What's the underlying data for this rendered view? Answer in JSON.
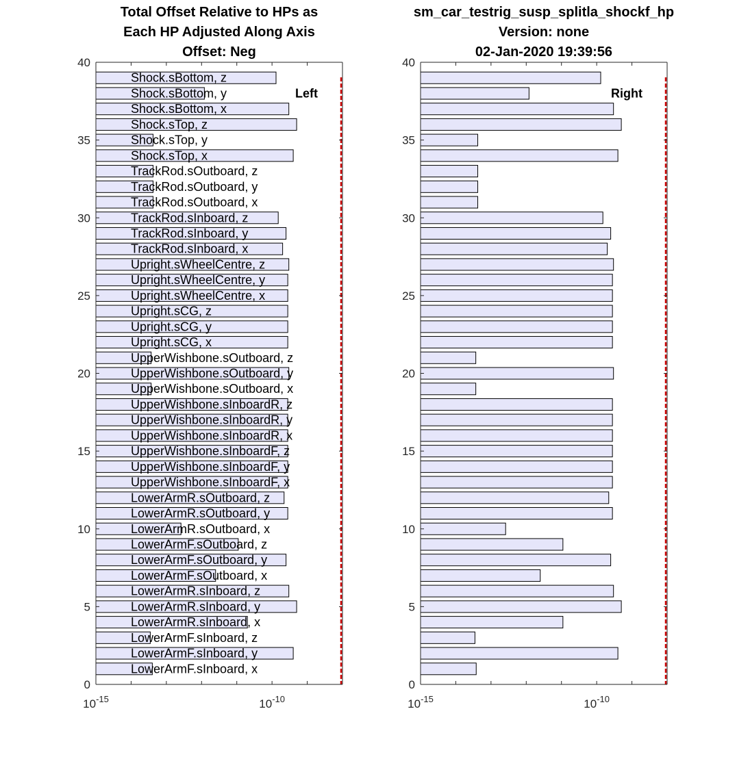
{
  "chart_data": [
    {
      "type": "bar",
      "orientation": "horizontal",
      "xscale": "log",
      "title_lines": [
        "Total Offset Relative to HPs as",
        "Each HP Adjusted Along Axis",
        "Offset: Neg"
      ],
      "side_label": "Left",
      "ylim": [
        0,
        40
      ],
      "xlim": [
        1e-15,
        1e-08
      ],
      "y_ticks": [
        "0",
        "5",
        "10",
        "15",
        "20",
        "25",
        "30",
        "35",
        "40"
      ],
      "x_tick_labels": [
        {
          "base": "10",
          "exp": "-15"
        },
        {
          "base": "10",
          "exp": "-10"
        }
      ],
      "categories": [
        "LowerArmF.sInboard, x",
        "LowerArmF.sInboard, y",
        "LowerArmF.sInboard, z",
        "LowerArmR.sInboard, x",
        "LowerArmR.sInboard, y",
        "LowerArmR.sInboard, z",
        "LowerArmF.sOutboard, x",
        "LowerArmF.sOutboard, y",
        "LowerArmF.sOutboard, z",
        "LowerArmR.sOutboard, x",
        "LowerArmR.sOutboard, y",
        "LowerArmR.sOutboard, z",
        "UpperWishbone.sInboardF, x",
        "UpperWishbone.sInboardF, y",
        "UpperWishbone.sInboardF, z",
        "UpperWishbone.sInboardR, x",
        "UpperWishbone.sInboardR, y",
        "UpperWishbone.sInboardR, z",
        "UpperWishbone.sOutboard, x",
        "UpperWishbone.sOutboard, y",
        "UpperWishbone.sOutboard, z",
        "Upright.sCG, x",
        "Upright.sCG, y",
        "Upright.sCG, z",
        "Upright.sWheelCentre, x",
        "Upright.sWheelCentre, y",
        "Upright.sWheelCentre, z",
        "TrackRod.sInboard, x",
        "TrackRod.sInboard, y",
        "TrackRod.sInboard, z",
        "TrackRod.sOutboard, x",
        "TrackRod.sOutboard, y",
        "TrackRod.sOutboard, z",
        "Shock.sTop, x",
        "Shock.sTop, y",
        "Shock.sTop, z",
        "Shock.sBottom, x",
        "Shock.sBottom, y",
        "Shock.sBottom, z"
      ],
      "values": [
        4e-14,
        4e-10,
        3.5e-14,
        2e-11,
        5e-10,
        3e-10,
        2.5e-12,
        2.5e-10,
        1.1e-11,
        2.6e-13,
        2.8e-10,
        2.2e-10,
        2.8e-10,
        2.8e-10,
        2.8e-10,
        2.8e-10,
        2.8e-10,
        2.8e-10,
        3.7e-14,
        3e-10,
        3.7e-14,
        2.8e-10,
        2.8e-10,
        2.8e-10,
        2.8e-10,
        2.8e-10,
        3e-10,
        2e-10,
        2.5e-10,
        1.5e-10,
        4.2e-14,
        4.2e-14,
        4.2e-14,
        4e-10,
        4.2e-14,
        5e-10,
        3e-10,
        1.2e-12,
        1.3e-10
      ]
    },
    {
      "type": "bar",
      "orientation": "horizontal",
      "xscale": "log",
      "title_lines": [
        "sm_car_testrig_susp_splitla_shockf_hp",
        "Version: none",
        "02-Jan-2020 19:39:56"
      ],
      "side_label": "Right",
      "ylim": [
        0,
        40
      ],
      "xlim": [
        1e-15,
        1e-08
      ],
      "y_ticks": [
        "0",
        "5",
        "10",
        "15",
        "20",
        "25",
        "30",
        "35",
        "40"
      ],
      "x_tick_labels": [
        {
          "base": "10",
          "exp": "-15"
        },
        {
          "base": "10",
          "exp": "-10"
        }
      ],
      "values": [
        3.8e-14,
        4e-10,
        3.5e-14,
        1.1e-11,
        5e-10,
        3e-10,
        2.5e-12,
        2.5e-10,
        1.1e-11,
        2.6e-13,
        2.8e-10,
        2.2e-10,
        2.8e-10,
        2.8e-10,
        2.8e-10,
        2.8e-10,
        2.8e-10,
        2.8e-10,
        3.7e-14,
        3e-10,
        3.7e-14,
        2.8e-10,
        2.8e-10,
        2.8e-10,
        2.8e-10,
        2.8e-10,
        3e-10,
        2e-10,
        2.5e-10,
        1.5e-10,
        4.2e-14,
        4.2e-14,
        4.2e-14,
        4e-10,
        4.2e-14,
        5e-10,
        3e-10,
        1.2e-12,
        1.3e-10
      ]
    }
  ]
}
